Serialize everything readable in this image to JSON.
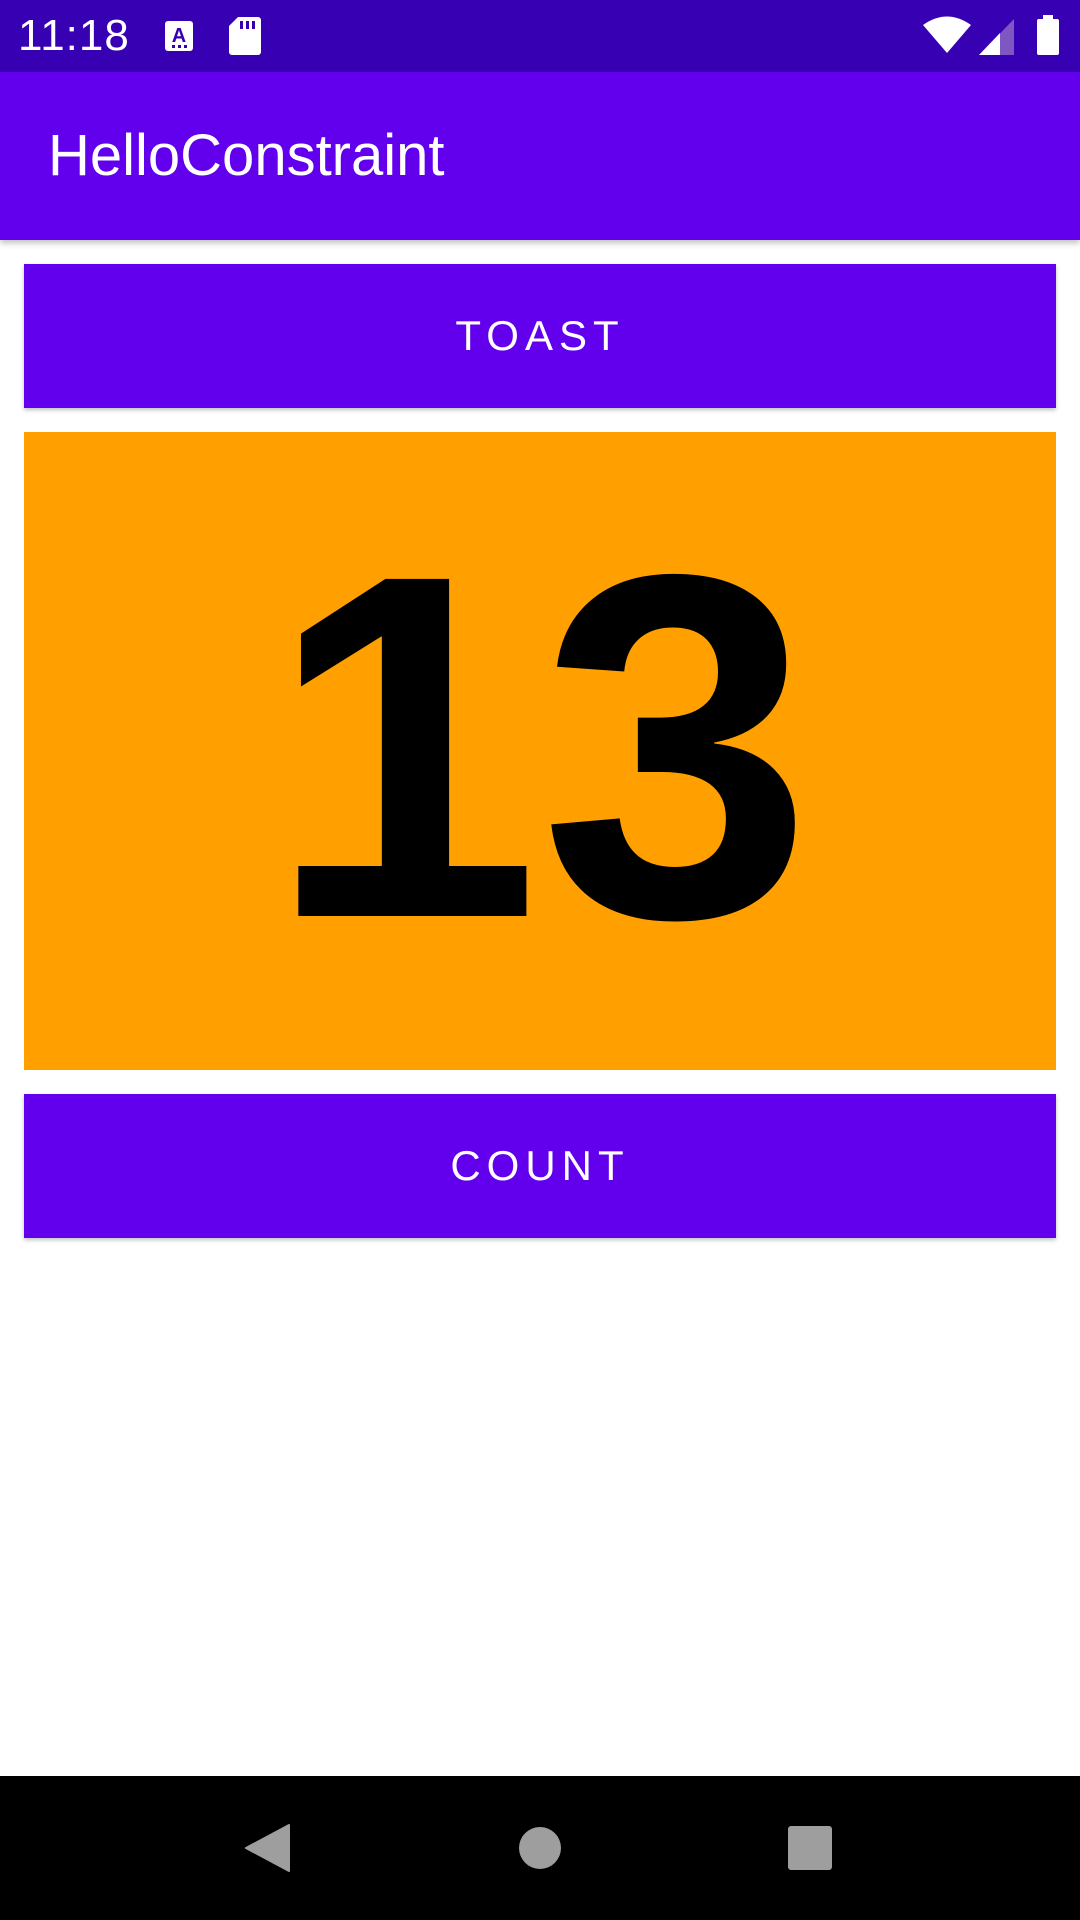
{
  "status_bar": {
    "time": "11:18",
    "background": "#3700B3",
    "icons": [
      "text-notification-icon",
      "sd-card-icon",
      "wifi-icon",
      "cell-signal-icon",
      "battery-icon"
    ]
  },
  "app_bar": {
    "title": "HelloConstraint",
    "background": "#6200EE"
  },
  "toast_button": {
    "label": "TOAST",
    "color": "#6200EE"
  },
  "counter": {
    "value": "13",
    "background": "#FFA000",
    "text_color": "#000000"
  },
  "count_button": {
    "label": "COUNT",
    "color": "#6200EE"
  },
  "nav_bar": {
    "background": "#000000",
    "buttons": [
      "back-icon",
      "home-icon",
      "recents-icon"
    ]
  }
}
